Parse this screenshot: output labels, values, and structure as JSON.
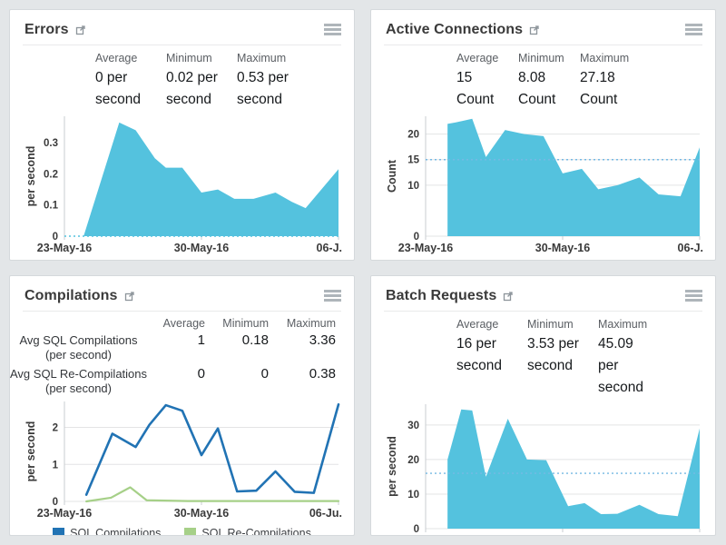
{
  "colors": {
    "page_bg": "#e3e6e8",
    "panel_bg": "#ffffff",
    "area_fill": "#54c2de",
    "avg_line_blue": "#74b9e4",
    "sql_compilations_blue": "#2173b4",
    "sql_recompilations_green": "#a6d088"
  },
  "panels": [
    {
      "title": "Errors",
      "stats": [
        {
          "label": "Average",
          "value": "0 per second"
        },
        {
          "label": "Minimum",
          "value": "0.02 per second"
        },
        {
          "label": "Maximum",
          "value": "0.53 per second"
        }
      ]
    },
    {
      "title": "Active Connections",
      "stats": [
        {
          "label": "Average",
          "value": "15 Count"
        },
        {
          "label": "Minimum",
          "value": "8.08 Count"
        },
        {
          "label": "Maximum",
          "value": "27.18 Count"
        }
      ]
    },
    {
      "title": "Compilations",
      "stats_table": {
        "headers": [
          "Average",
          "Minimum",
          "Maximum"
        ],
        "rows": [
          {
            "label_line1": "Avg SQL Compilations",
            "label_line2": "(per second)",
            "values": [
              "1",
              "0.18",
              "3.36"
            ]
          },
          {
            "label_line1": "Avg SQL Re-Compilations",
            "label_line2": "(per second)",
            "values": [
              "0",
              "0",
              "0.38"
            ]
          }
        ]
      },
      "legend": [
        {
          "label": "SQL Compilations",
          "color": "#2173b4"
        },
        {
          "label": "SQL Re-Compilations",
          "color": "#a6d088"
        }
      ]
    },
    {
      "title": "Batch Requests",
      "stats": [
        {
          "label": "Average",
          "value": "16 per second"
        },
        {
          "label": "Minimum",
          "value": "3.53 per second"
        },
        {
          "label": "Maximum",
          "value": "45.09 per second"
        }
      ]
    }
  ],
  "chart_data": [
    {
      "type": "area",
      "title": "Errors",
      "ylabel": "per second",
      "ylim": [
        0,
        0.385
      ],
      "yticks": [
        0,
        0.1,
        0.2,
        0.3
      ],
      "grid": false,
      "x_tick_labels": [
        "23-May-16",
        "30-May-16",
        "06-J."
      ],
      "avg_line": {
        "value": 0,
        "color": "#54c2de"
      },
      "series": [
        {
          "name": "Errors (per second)",
          "type": "area",
          "color": "#54c2de",
          "points": [
            [
              0.07,
              0
            ],
            [
              0.2,
              0.365
            ],
            [
              0.26,
              0.34
            ],
            [
              0.33,
              0.25
            ],
            [
              0.37,
              0.22
            ],
            [
              0.43,
              0.22
            ],
            [
              0.5,
              0.14
            ],
            [
              0.56,
              0.15
            ],
            [
              0.62,
              0.12
            ],
            [
              0.69,
              0.12
            ],
            [
              0.77,
              0.14
            ],
            [
              0.83,
              0.11
            ],
            [
              0.88,
              0.09
            ],
            [
              1,
              0.215
            ]
          ]
        }
      ]
    },
    {
      "type": "area",
      "title": "Active Connections",
      "ylabel": "Count",
      "ylim": [
        0,
        23.5
      ],
      "yticks": [
        0,
        10,
        15,
        20
      ],
      "grid": true,
      "x_tick_labels": [
        "23-May-16",
        "30-May-16",
        "06-J."
      ],
      "avg_line": {
        "value": 15,
        "color": "#74b9e4"
      },
      "series": [
        {
          "name": "Active Connections (Count)",
          "type": "area",
          "color": "#54c2de",
          "points": [
            [
              0.08,
              22
            ],
            [
              0.11,
              22.3
            ],
            [
              0.17,
              23
            ],
            [
              0.22,
              15.5
            ],
            [
              0.29,
              20.8
            ],
            [
              0.36,
              20
            ],
            [
              0.43,
              19.6
            ],
            [
              0.5,
              12.3
            ],
            [
              0.57,
              13.2
            ],
            [
              0.63,
              9.2
            ],
            [
              0.7,
              10
            ],
            [
              0.78,
              11.5
            ],
            [
              0.85,
              8.2
            ],
            [
              0.93,
              7.8
            ],
            [
              1,
              17.4
            ]
          ]
        }
      ]
    },
    {
      "type": "line",
      "title": "Compilations",
      "ylabel": "per second",
      "ylim": [
        0,
        2.7
      ],
      "yticks": [
        0,
        1,
        2
      ],
      "grid": true,
      "x_tick_labels": [
        "23-May-16",
        "30-May-16",
        "06-Ju."
      ],
      "series": [
        {
          "name": "SQL Compilations",
          "type": "line",
          "color": "#2173b4",
          "width": 2.6,
          "points": [
            [
              0.08,
              0.18
            ],
            [
              0.175,
              1.83
            ],
            [
              0.26,
              1.47
            ],
            [
              0.31,
              2.07
            ],
            [
              0.37,
              2.6
            ],
            [
              0.43,
              2.45
            ],
            [
              0.5,
              1.25
            ],
            [
              0.56,
              1.97
            ],
            [
              0.63,
              0.27
            ],
            [
              0.7,
              0.29
            ],
            [
              0.77,
              0.81
            ],
            [
              0.84,
              0.26
            ],
            [
              0.91,
              0.23
            ],
            [
              1,
              2.62
            ]
          ]
        },
        {
          "name": "SQL Re-Compilations",
          "type": "line",
          "color": "#a6d088",
          "width": 2.2,
          "points": [
            [
              0.08,
              0
            ],
            [
              0.17,
              0.1
            ],
            [
              0.24,
              0.38
            ],
            [
              0.3,
              0.03
            ],
            [
              0.45,
              0.01
            ],
            [
              0.6,
              0.01
            ],
            [
              0.8,
              0.01
            ],
            [
              1,
              0.01
            ]
          ]
        }
      ]
    },
    {
      "type": "area",
      "title": "Batch Requests",
      "ylabel": "per second",
      "ylim": [
        0,
        36
      ],
      "yticks": [
        0,
        10,
        20,
        30
      ],
      "grid": true,
      "x_tick_labels": [
        "23-May-16",
        "30-May-16",
        "06-J."
      ],
      "avg_line": {
        "value": 16,
        "color": "#74b9e4"
      },
      "series": [
        {
          "name": "Batch Requests (per second)",
          "type": "area",
          "color": "#54c2de",
          "points": [
            [
              0.08,
              20
            ],
            [
              0.13,
              34.5
            ],
            [
              0.17,
              34.2
            ],
            [
              0.22,
              15
            ],
            [
              0.3,
              31.8
            ],
            [
              0.37,
              20
            ],
            [
              0.44,
              19.8
            ],
            [
              0.52,
              6.5
            ],
            [
              0.58,
              7.4
            ],
            [
              0.64,
              4.2
            ],
            [
              0.7,
              4.3
            ],
            [
              0.78,
              6.9
            ],
            [
              0.85,
              4.2
            ],
            [
              0.92,
              3.6
            ],
            [
              1,
              29
            ]
          ]
        }
      ]
    }
  ]
}
